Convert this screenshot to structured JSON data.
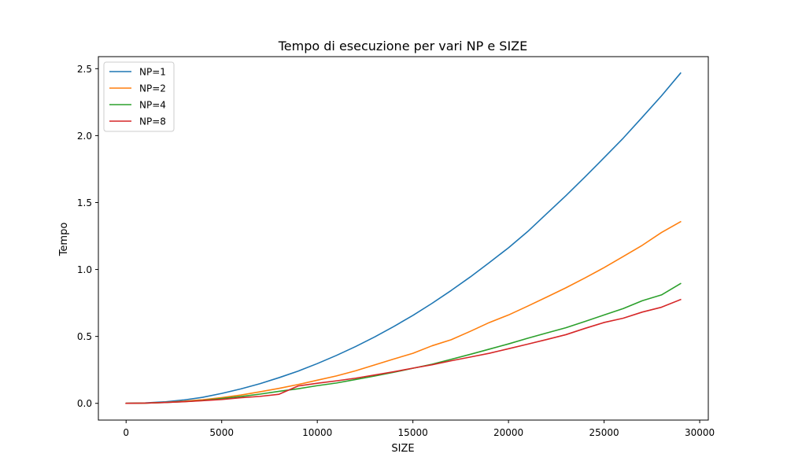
{
  "chart_data": {
    "type": "line",
    "title": "Tempo di esecuzione per vari NP e SIZE",
    "xlabel": "SIZE",
    "ylabel": "Tempo",
    "xlim": [
      -1450,
      30450
    ],
    "ylim": [
      -0.125,
      2.59
    ],
    "xticks": [
      0,
      5000,
      10000,
      15000,
      20000,
      25000,
      30000
    ],
    "yticks": [
      0.0,
      0.5,
      1.0,
      1.5,
      2.0,
      2.5
    ],
    "grid": false,
    "legend_position": "upper-left",
    "x": [
      0,
      1000,
      2000,
      3000,
      4000,
      5000,
      6000,
      7000,
      8000,
      9000,
      10000,
      11000,
      12000,
      13000,
      14000,
      15000,
      16000,
      17000,
      18000,
      19000,
      20000,
      21000,
      22000,
      23000,
      24000,
      25000,
      26000,
      27000,
      28000,
      29000
    ],
    "series": [
      {
        "name": "NP=1",
        "color": "#1f77b4",
        "values": [
          0.0,
          0.003,
          0.011,
          0.025,
          0.045,
          0.074,
          0.108,
          0.147,
          0.192,
          0.241,
          0.297,
          0.358,
          0.424,
          0.496,
          0.574,
          0.657,
          0.747,
          0.843,
          0.944,
          1.052,
          1.162,
          1.283,
          1.417,
          1.551,
          1.691,
          1.835,
          1.981,
          2.138,
          2.297,
          2.467
        ]
      },
      {
        "name": "NP=2",
        "color": "#ff7f0e",
        "values": [
          0.0,
          0.002,
          0.007,
          0.016,
          0.027,
          0.043,
          0.062,
          0.086,
          0.112,
          0.141,
          0.173,
          0.205,
          0.243,
          0.287,
          0.331,
          0.374,
          0.43,
          0.475,
          0.538,
          0.604,
          0.66,
          0.726,
          0.794,
          0.863,
          0.937,
          1.014,
          1.097,
          1.181,
          1.276,
          1.357
        ]
      },
      {
        "name": "NP=4",
        "color": "#2ca02c",
        "values": [
          0.0,
          0.002,
          0.006,
          0.013,
          0.022,
          0.036,
          0.051,
          0.069,
          0.09,
          0.109,
          0.132,
          0.152,
          0.178,
          0.204,
          0.232,
          0.262,
          0.292,
          0.329,
          0.366,
          0.405,
          0.444,
          0.486,
          0.526,
          0.565,
          0.612,
          0.66,
          0.708,
          0.767,
          0.81,
          0.895
        ]
      },
      {
        "name": "NP=8",
        "color": "#d62728",
        "values": [
          0.0,
          0.002,
          0.006,
          0.012,
          0.02,
          0.029,
          0.042,
          0.052,
          0.068,
          0.13,
          0.15,
          0.168,
          0.188,
          0.212,
          0.236,
          0.263,
          0.288,
          0.318,
          0.346,
          0.374,
          0.408,
          0.442,
          0.477,
          0.513,
          0.56,
          0.604,
          0.636,
          0.682,
          0.718,
          0.775
        ]
      }
    ]
  }
}
